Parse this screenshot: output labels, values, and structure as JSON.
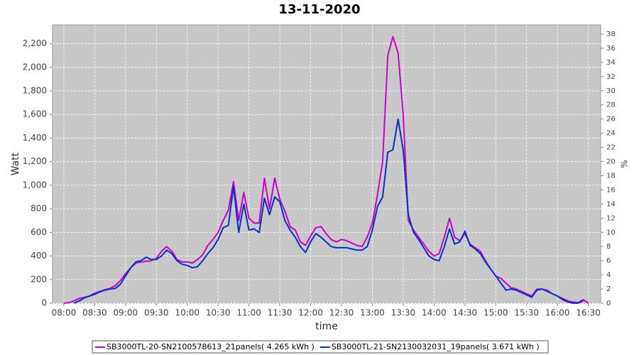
{
  "chart_data": {
    "type": "line",
    "title": "13-11-2020",
    "x_label": "time",
    "y_label": "Watt",
    "y2_label": "%",
    "x": [
      "08:00",
      "08:05",
      "08:10",
      "08:15",
      "08:20",
      "08:25",
      "08:30",
      "08:35",
      "08:40",
      "08:45",
      "08:50",
      "08:55",
      "09:00",
      "09:05",
      "09:10",
      "09:15",
      "09:20",
      "09:25",
      "09:30",
      "09:35",
      "09:40",
      "09:45",
      "09:50",
      "09:55",
      "10:00",
      "10:05",
      "10:10",
      "10:15",
      "10:20",
      "10:25",
      "10:30",
      "10:35",
      "10:40",
      "10:45",
      "10:50",
      "10:55",
      "11:00",
      "11:05",
      "11:10",
      "11:15",
      "11:20",
      "11:25",
      "11:30",
      "11:35",
      "11:40",
      "11:45",
      "11:50",
      "11:55",
      "12:00",
      "12:05",
      "12:10",
      "12:15",
      "12:20",
      "12:25",
      "12:30",
      "12:35",
      "12:40",
      "12:45",
      "12:50",
      "12:55",
      "13:00",
      "13:05",
      "13:10",
      "13:15",
      "13:20",
      "13:25",
      "13:30",
      "13:35",
      "13:40",
      "13:45",
      "13:50",
      "13:55",
      "14:00",
      "14:05",
      "14:10",
      "14:15",
      "14:20",
      "14:25",
      "14:30",
      "14:35",
      "14:40",
      "14:45",
      "14:50",
      "14:55",
      "15:00",
      "15:05",
      "15:10",
      "15:15",
      "15:20",
      "15:25",
      "15:30",
      "15:35",
      "15:40",
      "15:45",
      "15:50",
      "15:55",
      "16:00",
      "16:05",
      "16:10",
      "16:15",
      "16:20",
      "16:25",
      "16:30"
    ],
    "series": [
      {
        "name": "SB3000TL-20-SN2100578613_21panels( 4.265 kWh )",
        "color": "#cc00cc",
        "values": [
          0,
          5,
          20,
          40,
          50,
          60,
          85,
          100,
          115,
          125,
          150,
          190,
          250,
          300,
          340,
          350,
          355,
          360,
          380,
          440,
          480,
          440,
          370,
          350,
          350,
          340,
          370,
          410,
          490,
          540,
          600,
          700,
          790,
          1030,
          700,
          940,
          720,
          680,
          680,
          1060,
          800,
          1060,
          880,
          780,
          650,
          620,
          520,
          490,
          570,
          640,
          650,
          590,
          540,
          520,
          540,
          530,
          510,
          490,
          480,
          560,
          680,
          920,
          1200,
          2100,
          2260,
          2120,
          1600,
          700,
          620,
          560,
          500,
          440,
          400,
          420,
          560,
          720,
          560,
          530,
          590,
          500,
          470,
          440,
          360,
          290,
          230,
          210,
          170,
          130,
          120,
          100,
          80,
          60,
          120,
          120,
          110,
          80,
          60,
          40,
          20,
          10,
          5,
          30,
          0
        ]
      },
      {
        "name": "SB3000TL-21-SN2130032031_19panels( 3.671 kWh )",
        "color": "#0033cc",
        "values": [
          null,
          null,
          0,
          20,
          45,
          60,
          75,
          95,
          110,
          120,
          125,
          160,
          230,
          300,
          350,
          360,
          390,
          370,
          370,
          400,
          450,
          420,
          360,
          330,
          320,
          300,
          310,
          360,
          420,
          470,
          540,
          640,
          660,
          990,
          600,
          840,
          620,
          630,
          600,
          890,
          750,
          900,
          860,
          700,
          620,
          560,
          480,
          430,
          520,
          590,
          560,
          520,
          480,
          470,
          470,
          470,
          460,
          450,
          450,
          480,
          620,
          820,
          900,
          1280,
          1300,
          1560,
          1300,
          750,
          600,
          540,
          470,
          400,
          370,
          360,
          480,
          630,
          500,
          520,
          610,
          490,
          460,
          420,
          350,
          290,
          230,
          170,
          110,
          120,
          110,
          90,
          70,
          50,
          110,
          120,
          100,
          80,
          60,
          30,
          10,
          0,
          0,
          20,
          null
        ]
      }
    ],
    "xlim": [
      "07:49",
      "16:42"
    ],
    "xticks": [
      "08:00",
      "08:30",
      "09:00",
      "09:30",
      "10:00",
      "10:30",
      "11:00",
      "11:30",
      "12:00",
      "12:30",
      "13:00",
      "13:30",
      "14:00",
      "14:30",
      "15:00",
      "15:30",
      "16:00",
      "16:30"
    ],
    "ylim": [
      0,
      2360
    ],
    "yticks": [
      0,
      200,
      400,
      600,
      800,
      {
        "value": 1000,
        "label": "1,000"
      },
      {
        "value": 1200,
        "label": "1,200"
      },
      {
        "value": 1400,
        "label": "1,400"
      },
      {
        "value": 1600,
        "label": "1,600"
      },
      {
        "value": 1800,
        "label": "1,800"
      },
      {
        "value": 2000,
        "label": "2,000"
      },
      {
        "value": 2200,
        "label": "2,200"
      }
    ],
    "y2lim": [
      0,
      39.3
    ],
    "y2ticks": [
      0,
      2,
      4,
      6,
      8,
      10,
      12,
      14,
      16,
      18,
      20,
      22,
      24,
      26,
      28,
      30,
      32,
      34,
      36,
      38
    ],
    "grid": true
  }
}
